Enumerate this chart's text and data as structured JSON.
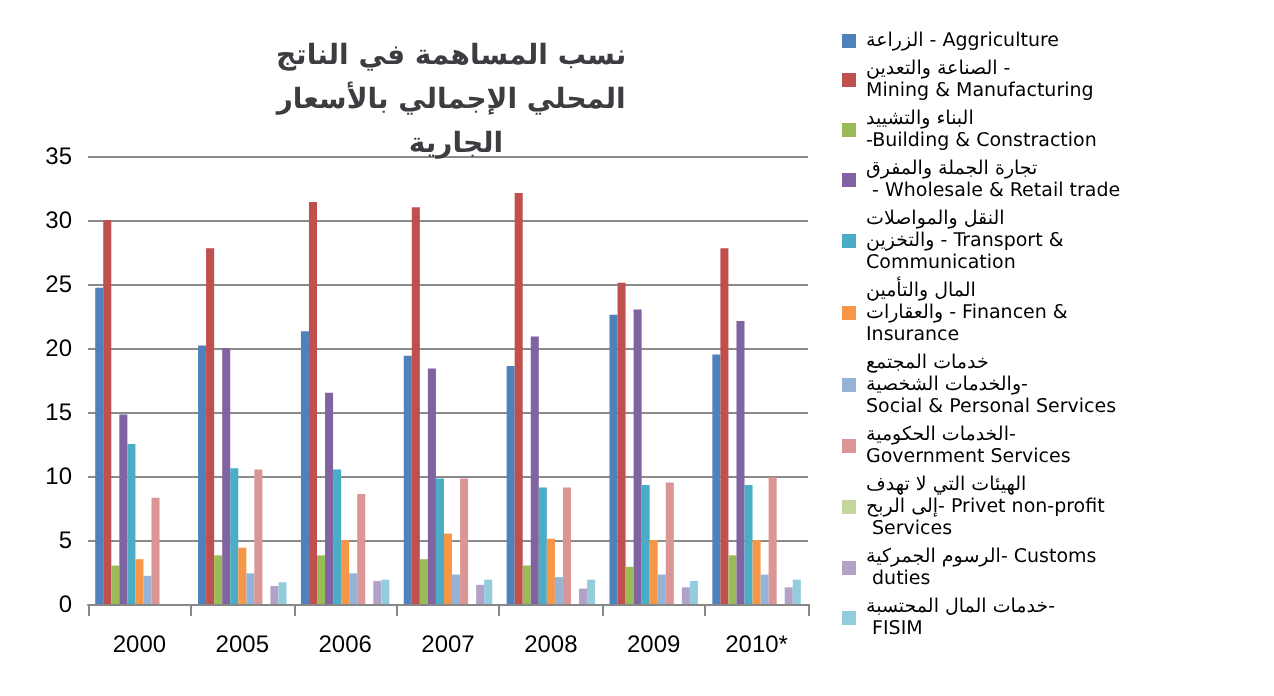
{
  "chart_data": {
    "type": "bar",
    "title": "نسب المساهمة في الناتج المحلي الإجمالي بالأسعار الجارية",
    "categories": [
      "2000",
      "2005",
      "2006",
      "2007",
      "2008",
      "2009",
      "2010*"
    ],
    "ylim": [
      0,
      35
    ],
    "yticks": [
      0,
      5,
      10,
      15,
      20,
      25,
      30,
      35
    ],
    "grid": "y",
    "legend": "right",
    "series": [
      {
        "name": "الزراعة - Aggriculture",
        "color": "#4f81bd",
        "values": [
          24.7,
          20.2,
          21.3,
          19.4,
          18.6,
          22.6,
          19.5
        ]
      },
      {
        "name": "الصناعة والتعدين - Mining & Manufacturing",
        "color": "#c0504d",
        "values": [
          30,
          27.8,
          31.4,
          31,
          32.1,
          25.1,
          27.8
        ]
      },
      {
        "name": "البناء والتشييد -Building & Constraction",
        "color": "#9bbb59",
        "values": [
          3,
          3.8,
          3.8,
          3.5,
          3,
          2.9,
          3.8
        ]
      },
      {
        "name": "تجارة الجملة والمفرق  - Wholesale & Retail trade",
        "color": "#8064a2",
        "values": [
          14.8,
          20,
          16.5,
          18.4,
          20.9,
          23,
          22.1
        ]
      },
      {
        "name": "النقل والمواصلات والتخزين - Transport & Communication",
        "color": "#4bacc6",
        "values": [
          12.5,
          10.6,
          10.5,
          9.8,
          9.1,
          9.3,
          9.3
        ]
      },
      {
        "name": "المال والتأمين والعقارات - Financen & Insurance",
        "color": "#f79646",
        "values": [
          3.5,
          4.4,
          5,
          5.5,
          5.1,
          5,
          5
        ]
      },
      {
        "name": "خدمات المجتمع والخدمات الشخصية- Social & Personal Services",
        "color": "#95b3d7",
        "values": [
          2.2,
          2.4,
          2.4,
          2.3,
          2.1,
          2.3,
          2.3
        ]
      },
      {
        "name": "الخدمات الحكومية- Government Services",
        "color": "#d99694",
        "values": [
          8.3,
          10.5,
          8.6,
          9.8,
          9.1,
          9.5,
          9.9
        ]
      },
      {
        "name": "الهيئات التي لا تهدف إلى الربح- Privet non-profit Services",
        "color": "#c3d69b",
        "values": [
          0,
          0,
          0,
          0,
          0,
          0,
          0
        ]
      },
      {
        "name": "الرسوم الجمركية- Customs duties",
        "color": "#b3a2c7",
        "values": [
          null,
          1.4,
          1.8,
          1.5,
          1.2,
          1.3,
          1.3
        ]
      },
      {
        "name": "خدمات المال المحتسبة- FISIM",
        "color": "#93cddd",
        "values": [
          null,
          1.7,
          1.9,
          1.9,
          1.9,
          1.8,
          1.9
        ]
      }
    ]
  }
}
